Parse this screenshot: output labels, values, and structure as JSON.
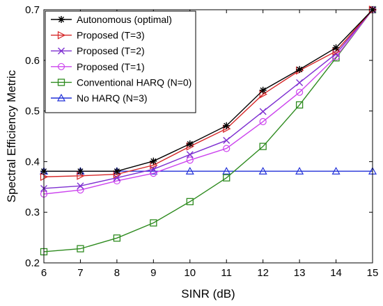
{
  "chart_data": {
    "type": "line",
    "xlabel": "SINR (dB)",
    "ylabel": "Spectral Efficiency Metric",
    "xlim": [
      6,
      15
    ],
    "ylim": [
      0.2,
      0.7
    ],
    "x_ticks": [
      "6",
      "7",
      "8",
      "9",
      "10",
      "11",
      "12",
      "13",
      "14",
      "15"
    ],
    "y_ticks": [
      "0.2",
      "0.3",
      "0.4",
      "0.5",
      "0.6",
      "0.7"
    ],
    "grid": false,
    "legend_position": "top-left",
    "x": [
      6,
      7,
      8,
      9,
      10,
      11,
      12,
      13,
      14,
      15
    ],
    "series": [
      {
        "name": "Autonomous (optimal)",
        "color": "#000000",
        "marker": "asterisk",
        "values": [
          0.381,
          0.381,
          0.381,
          0.401,
          0.435,
          0.471,
          0.541,
          0.582,
          0.625,
          0.7
        ]
      },
      {
        "name": "Proposed (T=3)",
        "color": "#d62728",
        "marker": "triangle-right",
        "values": [
          0.37,
          0.372,
          0.375,
          0.393,
          0.43,
          0.465,
          0.533,
          0.58,
          0.618,
          0.7
        ]
      },
      {
        "name": "Proposed (T=2)",
        "color": "#7e2fd1",
        "marker": "x",
        "values": [
          0.347,
          0.352,
          0.368,
          0.385,
          0.414,
          0.442,
          0.499,
          0.556,
          0.613,
          0.7
        ]
      },
      {
        "name": "Proposed (T=1)",
        "color": "#cc44ee",
        "marker": "circle",
        "values": [
          0.336,
          0.344,
          0.362,
          0.377,
          0.403,
          0.426,
          0.479,
          0.537,
          0.607,
          0.7
        ]
      },
      {
        "name": "Conventional HARQ (N=0)",
        "color": "#2e8b1f",
        "marker": "square",
        "values": [
          0.222,
          0.228,
          0.249,
          0.279,
          0.321,
          0.368,
          0.43,
          0.512,
          0.605,
          0.7
        ]
      },
      {
        "name": "No HARQ (N=3)",
        "color": "#2030d8",
        "marker": "triangle-up",
        "values": [
          0.381,
          0.381,
          0.381,
          0.381,
          0.381,
          0.381,
          0.381,
          0.381,
          0.381,
          0.381
        ]
      }
    ]
  }
}
